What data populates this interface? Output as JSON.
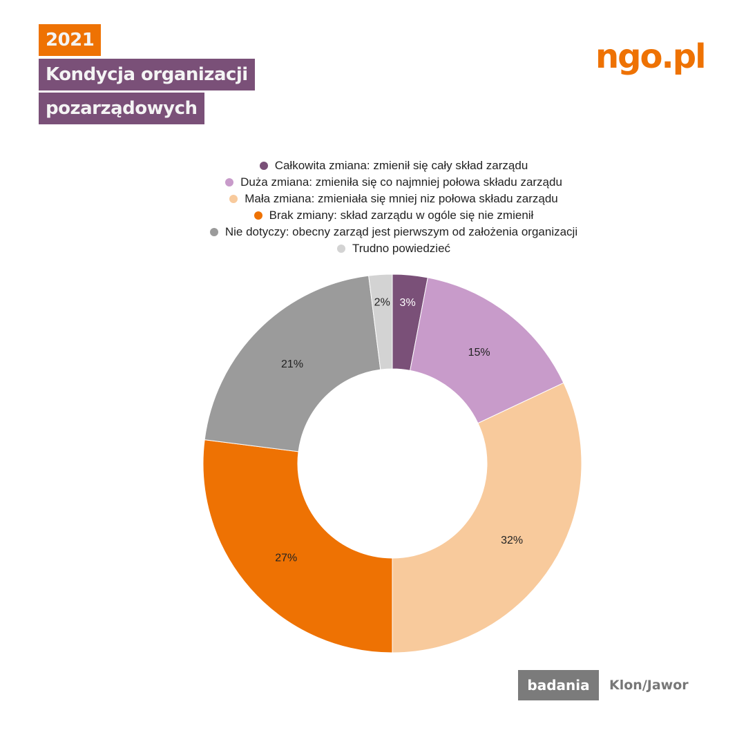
{
  "header": {
    "year": "2021",
    "title_line1": "Kondycja organizacji",
    "title_line2": "pozarządowych",
    "logo": "ngo.pl"
  },
  "footer": {
    "badge": "badania",
    "source": "Klon/Jawor"
  },
  "chart_data": {
    "type": "pie",
    "variant": "donut",
    "legend_position": "top",
    "categories": [
      "Całkowita zmiana: zmienił się cały skład zarządu",
      "Duża zmiana: zmieniła się co najmniej połowa składu zarządu",
      "Mała zmiana: zmieniała się mniej niz połowa składu zarządu",
      "Brak zmiany: skład zarządu w ogóle się nie zmienił",
      "Nie dotyczy: obecny zarząd jest pierwszym od założenia organizacji",
      "Trudno powiedzieć"
    ],
    "values": [
      3,
      15,
      32,
      27,
      21,
      2
    ],
    "labels": [
      "3%",
      "15%",
      "32%",
      "27%",
      "21%",
      "2%"
    ],
    "colors": [
      "#7a5078",
      "#c89bca",
      "#f8ca9c",
      "#ee7203",
      "#9b9b9b",
      "#d3d3d3"
    ],
    "label_colors": [
      "#ffffff",
      "#222222",
      "#222222",
      "#222222",
      "#222222",
      "#222222"
    ]
  }
}
